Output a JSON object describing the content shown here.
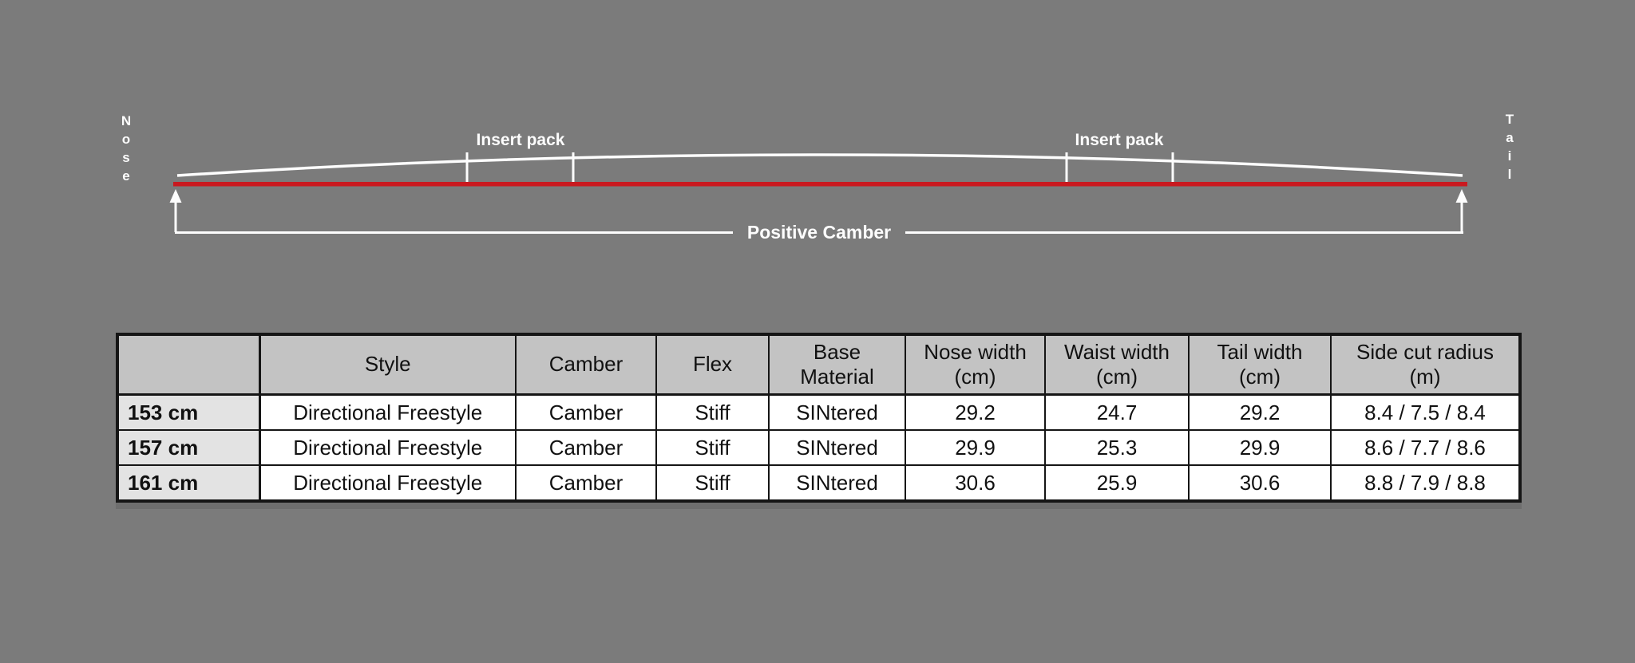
{
  "colors": {
    "background": "#7b7b7b",
    "base_line_red": "#c9191f",
    "diagram_lines": "#fdfdfd",
    "table_border": "#151515",
    "table_header_bg": "#c3c3c3",
    "table_size_col_bg": "#e3e3e3",
    "table_cell_bg": "#ffffff"
  },
  "diagram": {
    "nose_label": "Nose",
    "tail_label": "Tail",
    "insert_pack_left_label": "Insert pack",
    "insert_pack_right_label": "Insert pack",
    "positive_camber_label": "Positive Camber"
  },
  "table": {
    "headers": [
      "",
      "Style",
      "Camber",
      "Flex",
      "Base\nMaterial",
      "Nose width\n(cm)",
      "Waist width\n(cm)",
      "Tail width\n(cm)",
      "Side cut radius\n(m)"
    ],
    "rows": [
      [
        "153 cm",
        "Directional Freestyle",
        "Camber",
        "Stiff",
        "SINtered",
        "29.2",
        "24.7",
        "29.2",
        "8.4 / 7.5 / 8.4"
      ],
      [
        "157 cm",
        "Directional Freestyle",
        "Camber",
        "Stiff",
        "SINtered",
        "29.9",
        "25.3",
        "29.9",
        "8.6 / 7.7 / 8.6"
      ],
      [
        "161 cm",
        "Directional Freestyle",
        "Camber",
        "Stiff",
        "SINtered",
        "30.6",
        "25.9",
        "30.6",
        "8.8 / 7.9 / 8.8"
      ]
    ]
  }
}
